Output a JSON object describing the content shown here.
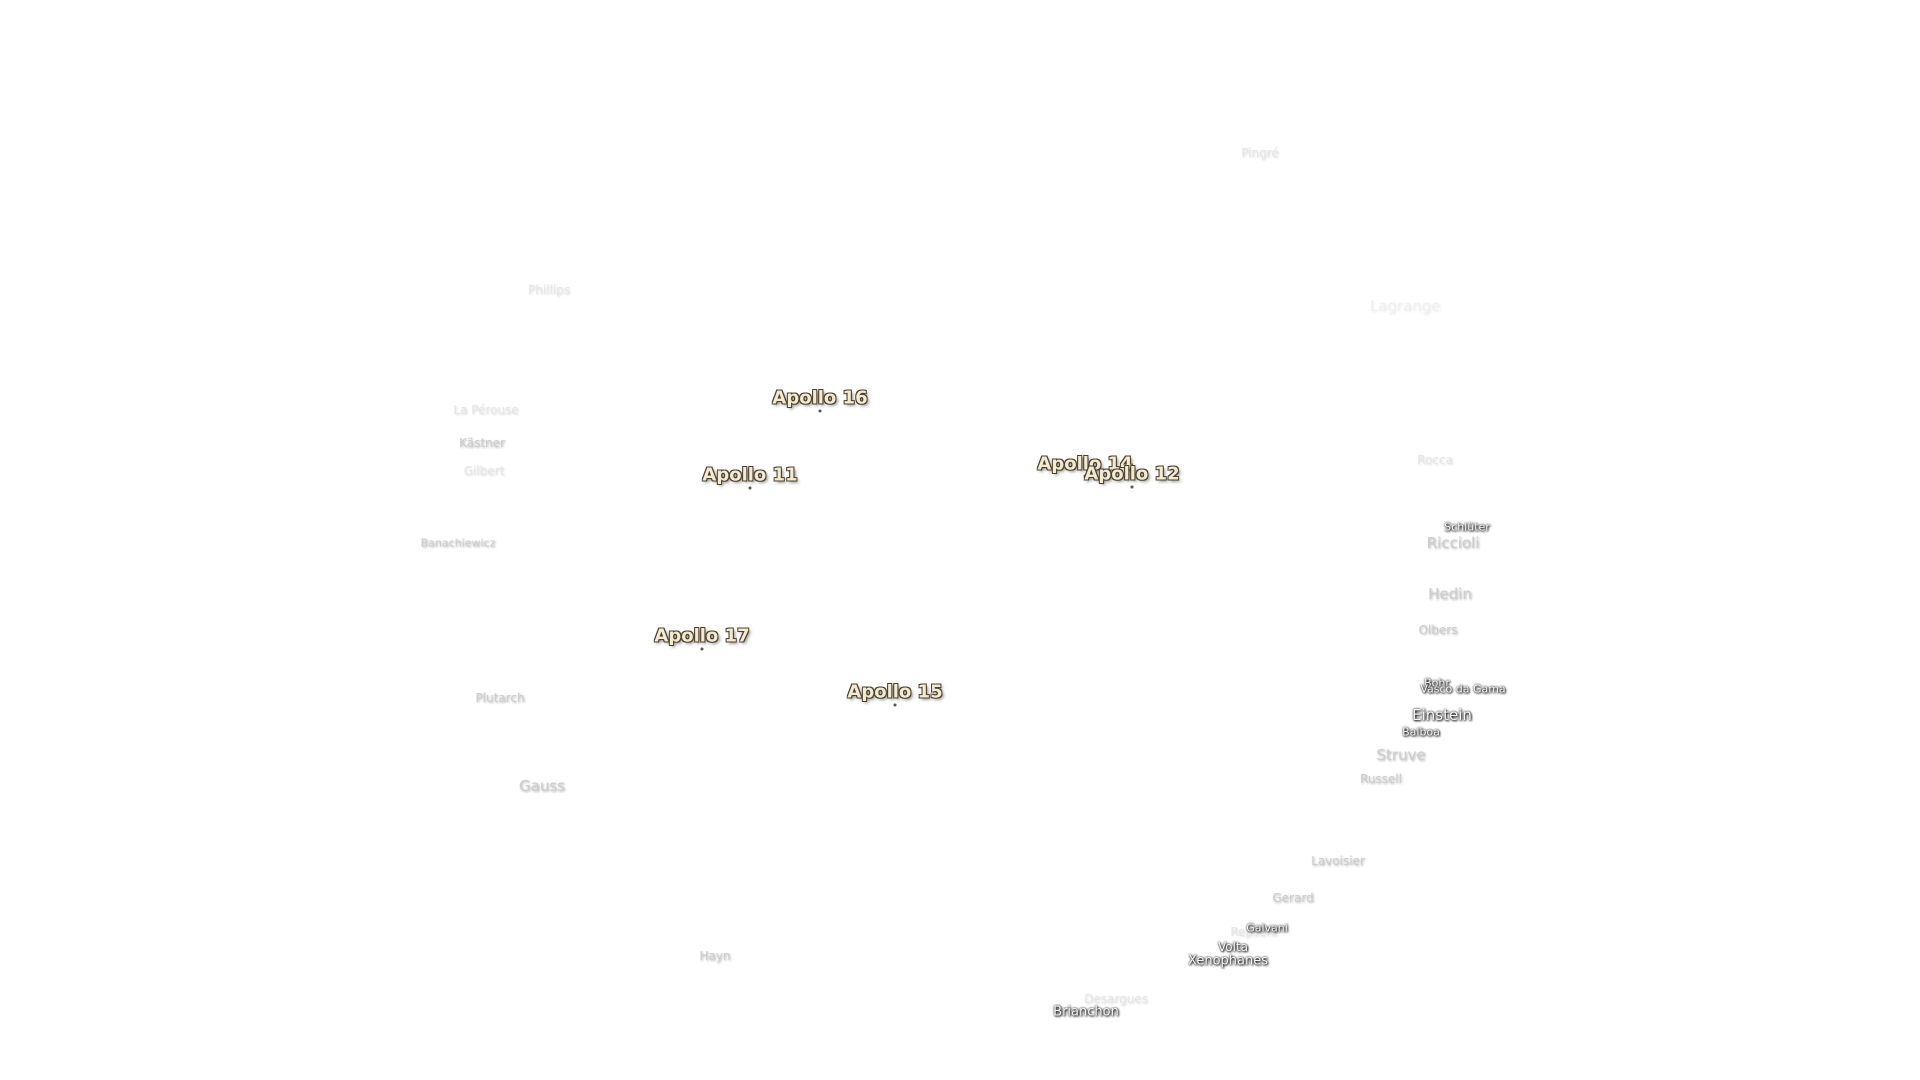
{
  "labels": {
    "pingre": "Pingré",
    "phillips": "Phillips",
    "lagrange": "Lagrange",
    "apollo_16": "Apollo 16",
    "la_perouse": "La Pérouse",
    "kastner": "Kästner",
    "gilbert": "Gilbert",
    "apollo_11": "Apollo 11",
    "apollo_14": "Apollo 14",
    "apollo_12": "Apollo 12",
    "rocca": "Rocca",
    "schluter": "Schlüter",
    "riccioli": "Riccioli",
    "banachiewicz": "Banachiewicz",
    "hedin": "Hedin",
    "olbers": "Olbers",
    "apollo_17": "Apollo 17",
    "bohr": "Bohr",
    "vasco_da_gama": "Vasco da Gama",
    "plutarch": "Plutarch",
    "apollo_15": "Apollo 15",
    "einstein": "Einstein",
    "balboa": "Balboa",
    "struve": "Struve",
    "russell": "Russell",
    "gauss": "Gauss",
    "lavoisier": "Lavoisier",
    "gerard": "Gerard",
    "galvani": "Galvani",
    "repsold": "Repsold",
    "volta": "Volta",
    "xenophanes": "Xenophanes",
    "hayn": "Hayn",
    "desargues": "Desargues",
    "brianchon": "Brianchon"
  }
}
